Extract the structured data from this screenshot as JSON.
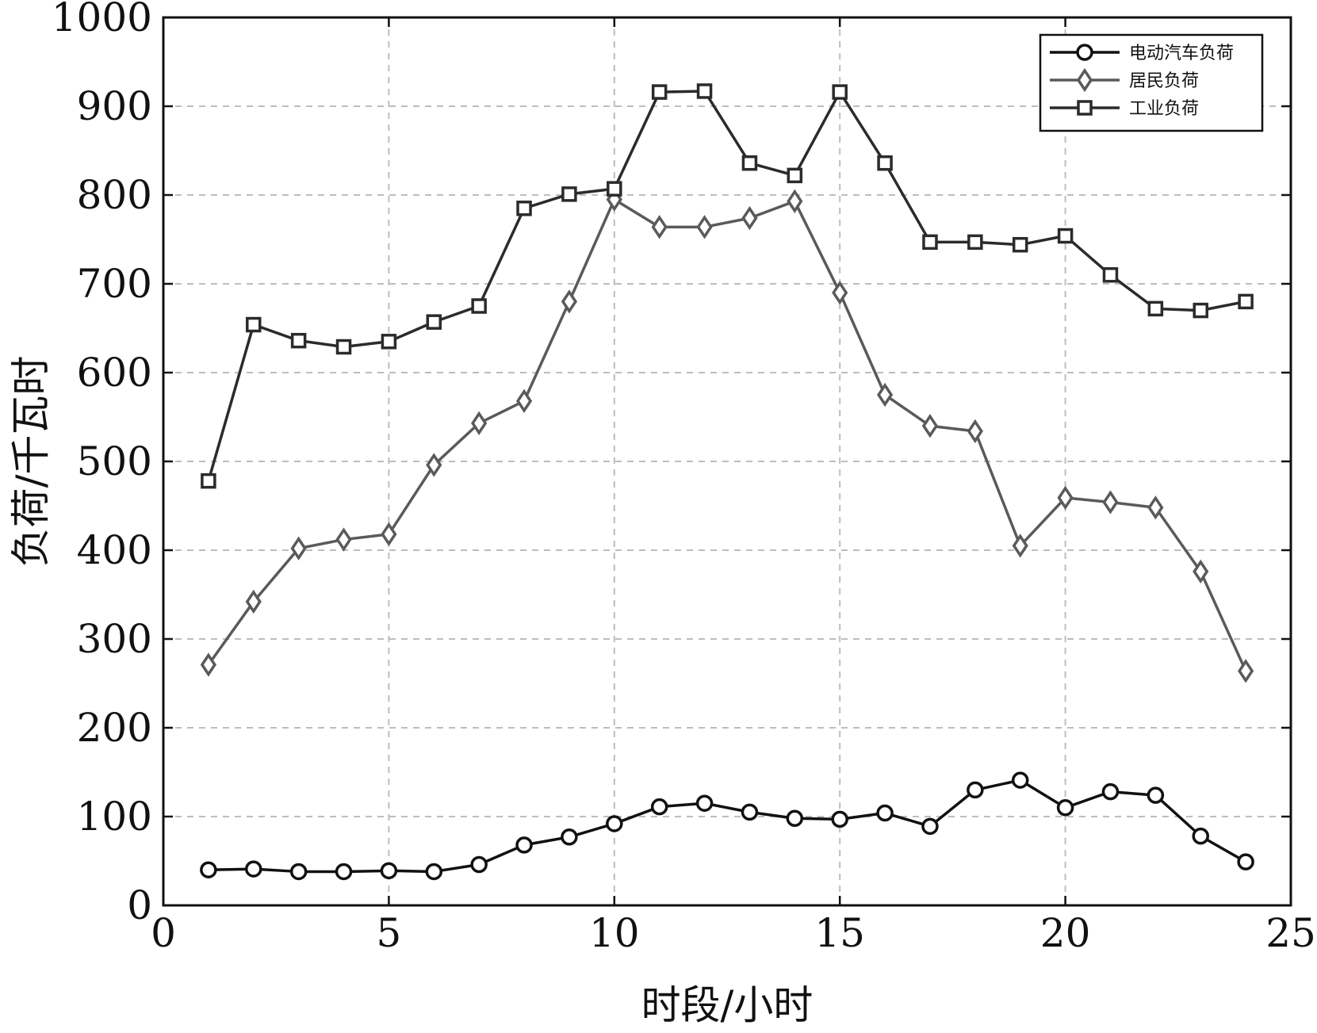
{
  "chart_data": {
    "type": "line",
    "title": "",
    "xlabel": "时段/小时",
    "ylabel": "负荷/千瓦时",
    "xlim": [
      0,
      25
    ],
    "ylim": [
      0,
      1000
    ],
    "xticks": [
      0,
      5,
      10,
      15,
      20,
      25
    ],
    "yticks": [
      0,
      100,
      200,
      300,
      400,
      500,
      600,
      700,
      800,
      900,
      1000
    ],
    "grid": true,
    "legend_position": "top-right",
    "x": [
      1,
      2,
      3,
      4,
      5,
      6,
      7,
      8,
      9,
      10,
      11,
      12,
      13,
      14,
      15,
      16,
      17,
      18,
      19,
      20,
      21,
      22,
      23,
      24
    ],
    "series": [
      {
        "name": "电动汽车负荷",
        "marker": "circle",
        "color": "#111111",
        "values": [
          40,
          41,
          38,
          38,
          39,
          38,
          46,
          68,
          77,
          92,
          111,
          115,
          105,
          98,
          97,
          104,
          89,
          130,
          141,
          110,
          128,
          124,
          78,
          49
        ]
      },
      {
        "name": "居民负荷",
        "marker": "diamond",
        "color": "#5a5a5a",
        "values": [
          271,
          342,
          402,
          412,
          418,
          496,
          543,
          568,
          680,
          795,
          764,
          764,
          774,
          793,
          690,
          575,
          540,
          534,
          405,
          459,
          454,
          448,
          376,
          264
        ]
      },
      {
        "name": "工业负荷",
        "marker": "square",
        "color": "#2b2b2b",
        "values": [
          478,
          654,
          636,
          629,
          635,
          657,
          675,
          785,
          801,
          807,
          916,
          917,
          836,
          822,
          916,
          836,
          747,
          747,
          744,
          754,
          710,
          672,
          670,
          680
        ]
      }
    ]
  }
}
